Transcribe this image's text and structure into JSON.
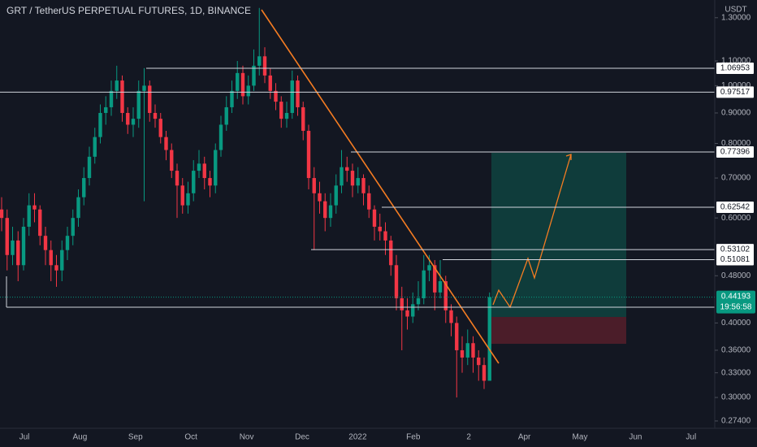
{
  "chart_data": {
    "type": "candlestick",
    "title": "GRT / TetherUS PERPETUAL FUTURES, 1D, BINANCE",
    "currency": "USDT",
    "log_scale": true,
    "up_color": "#089981",
    "down_color": "#f23645",
    "ylim": [
      0.268,
      1.392
    ],
    "yticks": [
      {
        "value": 1.3,
        "label": "1.30000"
      },
      {
        "value": 1.1,
        "label": "1.10000"
      },
      {
        "value": 1.0,
        "label": "1.00000"
      },
      {
        "value": 0.9,
        "label": "0.90000"
      },
      {
        "value": 0.8,
        "label": "0.80000"
      },
      {
        "value": 0.7,
        "label": "0.70000"
      },
      {
        "value": 0.6,
        "label": "0.60000"
      },
      {
        "value": 0.48,
        "label": "0.48000"
      },
      {
        "value": 0.4,
        "label": "0.40000"
      },
      {
        "value": 0.36,
        "label": "0.36000"
      },
      {
        "value": 0.33,
        "label": "0.33000"
      },
      {
        "value": 0.3,
        "label": "0.30000"
      },
      {
        "value": 0.274,
        "label": "0.27400"
      }
    ],
    "xtick_labels": [
      "Jul",
      "Aug",
      "Sep",
      "Oct",
      "Nov",
      "Dec",
      "2022",
      "Feb",
      "2",
      "Apr",
      "May",
      "Jun",
      "Jul"
    ],
    "levels": [
      1.06953,
      0.97517,
      0.77396,
      0.62542,
      0.53102,
      0.51081
    ],
    "last_price": 0.44193,
    "countdown": "19:56:58",
    "open": [
      0.62,
      0.6,
      0.52,
      0.55,
      0.5,
      0.58,
      0.63,
      0.62,
      0.56,
      0.53,
      0.5,
      0.49,
      0.53,
      0.56,
      0.6,
      0.65,
      0.7,
      0.76,
      0.82,
      0.9,
      0.92,
      0.98,
      1.02,
      0.9,
      0.86,
      0.88,
      0.98,
      1.0,
      0.9,
      0.88,
      0.82,
      0.78,
      0.72,
      0.68,
      0.63,
      0.66,
      0.72,
      0.74,
      0.7,
      0.68,
      0.78,
      0.86,
      0.92,
      0.98,
      1.05,
      0.96,
      1.0,
      1.08,
      1.12,
      1.04,
      0.98,
      0.94,
      0.88,
      0.9,
      1.02,
      0.92,
      0.84,
      0.7,
      0.66,
      0.64,
      0.6,
      0.63,
      0.68,
      0.73,
      0.72,
      0.68,
      0.7,
      0.66,
      0.62,
      0.58,
      0.57,
      0.55,
      0.5,
      0.44,
      0.42,
      0.41,
      0.43,
      0.44,
      0.49,
      0.5,
      0.45,
      0.47,
      0.42,
      0.4,
      0.36,
      0.35,
      0.37,
      0.35,
      0.34,
      0.32
    ],
    "high": [
      0.65,
      0.62,
      0.58,
      0.57,
      0.6,
      0.66,
      0.66,
      0.63,
      0.58,
      0.55,
      0.52,
      0.55,
      0.58,
      0.62,
      0.67,
      0.73,
      0.79,
      0.85,
      0.93,
      0.96,
      1.02,
      1.08,
      1.04,
      0.92,
      0.92,
      1.02,
      1.07,
      1.02,
      0.93,
      0.9,
      0.84,
      0.8,
      0.74,
      0.7,
      0.69,
      0.75,
      0.78,
      0.76,
      0.72,
      0.8,
      0.89,
      0.96,
      1.02,
      1.1,
      1.08,
      1.04,
      1.15,
      1.35,
      1.16,
      1.07,
      1.01,
      0.96,
      0.94,
      1.06,
      1.04,
      0.94,
      0.86,
      0.73,
      0.69,
      0.66,
      0.66,
      0.71,
      0.78,
      0.76,
      0.74,
      0.73,
      0.71,
      0.68,
      0.63,
      0.61,
      0.59,
      0.56,
      0.52,
      0.46,
      0.44,
      0.45,
      0.47,
      0.52,
      0.52,
      0.51,
      0.51,
      0.48,
      0.43,
      0.41,
      0.38,
      0.39,
      0.38,
      0.36,
      0.35,
      0.45
    ],
    "low": [
      0.57,
      0.49,
      0.5,
      0.47,
      0.49,
      0.56,
      0.59,
      0.54,
      0.5,
      0.47,
      0.46,
      0.47,
      0.51,
      0.54,
      0.58,
      0.63,
      0.68,
      0.74,
      0.8,
      0.86,
      0.89,
      0.95,
      0.87,
      0.83,
      0.82,
      0.85,
      0.64,
      0.87,
      0.85,
      0.8,
      0.75,
      0.7,
      0.6,
      0.61,
      0.61,
      0.64,
      0.7,
      0.67,
      0.65,
      0.66,
      0.76,
      0.84,
      0.9,
      0.95,
      0.93,
      0.93,
      0.98,
      1.04,
      1.01,
      0.95,
      0.91,
      0.85,
      0.85,
      0.88,
      0.89,
      0.81,
      0.67,
      0.53,
      0.61,
      0.57,
      0.58,
      0.61,
      0.66,
      0.69,
      0.65,
      0.66,
      0.63,
      0.6,
      0.55,
      0.55,
      0.52,
      0.48,
      0.42,
      0.36,
      0.39,
      0.4,
      0.42,
      0.43,
      0.47,
      0.42,
      0.44,
      0.4,
      0.38,
      0.3,
      0.33,
      0.34,
      0.33,
      0.32,
      0.31,
      0.32
    ],
    "close": [
      0.6,
      0.52,
      0.55,
      0.5,
      0.58,
      0.63,
      0.62,
      0.56,
      0.53,
      0.5,
      0.49,
      0.53,
      0.56,
      0.6,
      0.65,
      0.7,
      0.76,
      0.82,
      0.9,
      0.92,
      0.98,
      1.02,
      0.9,
      0.86,
      0.88,
      0.98,
      1.0,
      0.9,
      0.88,
      0.82,
      0.78,
      0.72,
      0.68,
      0.63,
      0.66,
      0.72,
      0.74,
      0.7,
      0.68,
      0.78,
      0.86,
      0.92,
      0.98,
      1.05,
      0.96,
      1.0,
      1.08,
      1.12,
      1.04,
      0.98,
      0.94,
      0.88,
      0.9,
      1.02,
      0.92,
      0.84,
      0.7,
      0.66,
      0.64,
      0.6,
      0.63,
      0.68,
      0.73,
      0.72,
      0.68,
      0.7,
      0.66,
      0.62,
      0.58,
      0.57,
      0.55,
      0.5,
      0.44,
      0.42,
      0.41,
      0.43,
      0.44,
      0.49,
      0.5,
      0.45,
      0.47,
      0.42,
      0.4,
      0.36,
      0.35,
      0.37,
      0.35,
      0.34,
      0.32,
      0.44193
    ]
  }
}
